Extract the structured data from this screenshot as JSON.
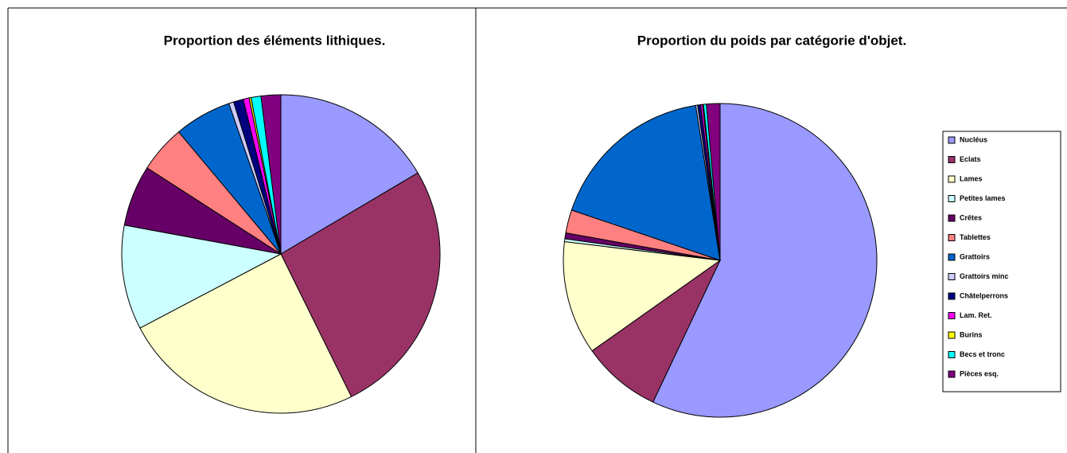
{
  "legend": {
    "labels": [
      "Nucléus",
      "Eclats",
      "Lames",
      "Petites lames",
      "Crêtes",
      "Tablettes",
      "Grattoirs",
      "Grattoirs minc",
      "Châtelperrons",
      "Lam. Ret.",
      "Burins",
      "Becs et tronc",
      "Pièces esq."
    ],
    "colors": [
      "#9999ff",
      "#993366",
      "#ffffcc",
      "#ccffff",
      "#660066",
      "#ff8080",
      "#0066cc",
      "#ccccff",
      "#000080",
      "#ff00ff",
      "#ffff00",
      "#00ffff",
      "#800080"
    ]
  },
  "chart_data": [
    {
      "type": "pie",
      "title": "Proportion des éléments lithiques.",
      "values": [
        16.5,
        26.2,
        24.6,
        10.6,
        6.2,
        4.8,
        5.8,
        0.5,
        1.0,
        0.6,
        0.2,
        1.0,
        2.0
      ]
    },
    {
      "type": "pie",
      "title": "Proportion du poids par catégorie d'objet.",
      "values": [
        57.3,
        8.2,
        11.75,
        0.3,
        0.6,
        2.4,
        17.4,
        0.2,
        0.3,
        0.2,
        0.1,
        0.3,
        1.4
      ]
    }
  ]
}
